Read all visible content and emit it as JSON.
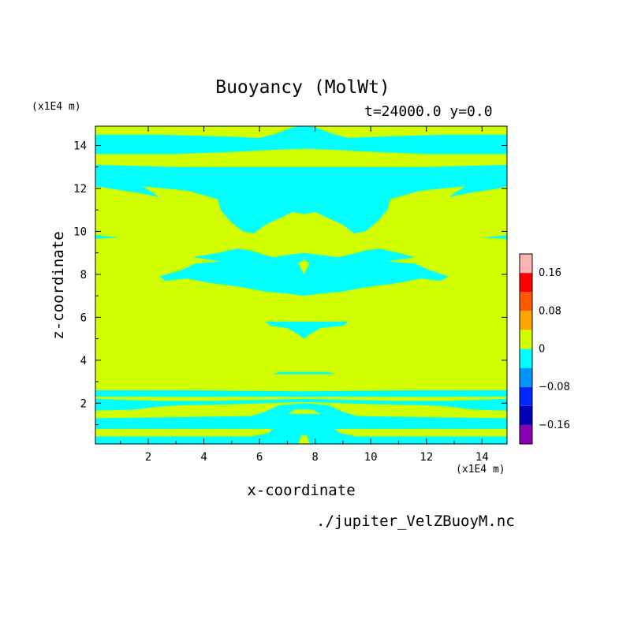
{
  "title": "Buoyancy (MolWt)",
  "subtitle": "t=24000.0 y=0.0",
  "footer": "./jupiter_VelZBuoyM.nc",
  "chart_data": {
    "type": "heatmap",
    "xlabel": "x-coordinate",
    "ylabel": "z-coordinate",
    "x_unit": "(x1E4 m)",
    "y_unit": "(x1E4 m)",
    "xlim": [
      0.1,
      14.9
    ],
    "ylim": [
      0.1,
      14.9
    ],
    "x_ticks": [
      2,
      4,
      6,
      8,
      10,
      12,
      14
    ],
    "y_ticks": [
      2,
      4,
      6,
      8,
      10,
      12,
      14
    ],
    "background_level": "0 to 0.04",
    "regions": [
      {
        "level": "-0.04 to 0",
        "x": [
          0.1,
          14.9
        ],
        "z": [
          0.1,
          0.55
        ]
      },
      {
        "level": "-0.04 to 0",
        "x": [
          0.1,
          14.9
        ],
        "z": [
          0.85,
          1.35
        ]
      },
      {
        "level": "-0.04 to 0",
        "x": [
          0.1,
          14.9
        ],
        "z": [
          2.3,
          2.6
        ]
      },
      {
        "level": "-0.04 to 0",
        "x": [
          0.1,
          14.9
        ],
        "z": [
          1.7,
          2.2
        ]
      },
      {
        "level": "-0.04 to 0",
        "x": [
          6.5,
          8.7
        ],
        "z": [
          3.3,
          3.45
        ]
      },
      {
        "level": "-0.04 to 0",
        "x": [
          6.2,
          9.2
        ],
        "z": [
          5.3,
          5.8
        ]
      },
      {
        "level": "-0.04 to 0",
        "x": [
          2.4,
          12.8
        ],
        "z": [
          7.0,
          9.3
        ]
      },
      {
        "level": "-0.04 to 0",
        "x": [
          0.1,
          14.9
        ],
        "z": [
          9.7,
          9.8
        ]
      },
      {
        "level": "-0.04 to 0",
        "x": [
          4.5,
          10.7
        ],
        "z": [
          9.9,
          12.0
        ]
      },
      {
        "level": "-0.04 to 0",
        "x": [
          0.1,
          14.9
        ],
        "z": [
          11.9,
          13.1
        ]
      },
      {
        "level": "-0.04 to 0",
        "x": [
          0.1,
          14.9
        ],
        "z": [
          13.6,
          14.5
        ]
      }
    ],
    "colorbar": {
      "levels": [
        -0.2,
        -0.16,
        -0.12,
        -0.08,
        -0.04,
        0,
        0.04,
        0.08,
        0.12,
        0.16,
        0.2
      ],
      "colors": [
        "#8c00b4",
        "#0000b4",
        "#0028ff",
        "#0096ff",
        "#00ffff",
        "#d2ff00",
        "#ffa500",
        "#ff5a00",
        "#ff0000",
        "#ffb4b4"
      ],
      "tick_labels": [
        {
          "value": 0.16,
          "label": "0.16"
        },
        {
          "value": 0.08,
          "label": "0.08"
        },
        {
          "value": 0,
          "label": "0"
        },
        {
          "value": -0.08,
          "label": "−0.08"
        },
        {
          "value": -0.16,
          "label": "−0.16"
        }
      ]
    },
    "colors": {
      "background": "#d2ff00",
      "negative": "#00ffff"
    }
  }
}
